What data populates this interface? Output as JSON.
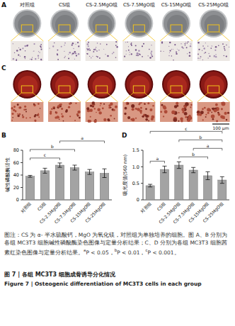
{
  "photo_columns": [
    "对照组",
    "CS组",
    "CS-2.5MgO组",
    "CS-7.5MgO组",
    "CS-15MgO组",
    "CS-25MgO组"
  ],
  "photo_panels": [
    {
      "letter": "A"
    },
    {
      "letter": "C"
    }
  ],
  "scale_bar": "100 μm",
  "chart_data": [
    {
      "type": "bar",
      "panel": "B",
      "y_label": "碱性磷酸酶活性",
      "categories": [
        "对照组",
        "CS组",
        "CS-2.5MgO组",
        "CS-7.5MgO组",
        "CS-15MgO组",
        "CS-25MgO组"
      ],
      "values": [
        38,
        47,
        56,
        52,
        45,
        43
      ],
      "errors": [
        1.5,
        4,
        3.5,
        4,
        4,
        7
      ],
      "color": "#a3a3a3",
      "ylim": [
        0,
        80
      ],
      "yticks": [
        0,
        20,
        40,
        60,
        80
      ],
      "annotations": [
        {
          "from": 0,
          "to": 2,
          "label": "c"
        },
        {
          "from": 0,
          "to": 3,
          "label": "b"
        },
        {
          "from": 2,
          "to": 5,
          "label": "a"
        }
      ]
    },
    {
      "type": "bar",
      "panel": "D",
      "y_label": "吸光度值(560 nm)",
      "categories": [
        "对照组",
        "CS组",
        "CS-2.5MgO组",
        "CS-7.5MgO组",
        "CS-15MgO组",
        "CS-25MgO组"
      ],
      "values": [
        0.43,
        0.92,
        1.05,
        0.9,
        0.73,
        0.6
      ],
      "errors": [
        0.04,
        0.1,
        0.1,
        0.08,
        0.12,
        0.1
      ],
      "color": "#a3a3a3",
      "ylim": [
        0,
        1.5
      ],
      "yticks": [
        0,
        0.5,
        {
          "value": 1,
          "label": "1.0"
        },
        1.5
      ],
      "annotations": [
        {
          "from": 0,
          "to": 1,
          "label": "a"
        },
        {
          "from": 2,
          "to": 4,
          "label": "b"
        },
        {
          "from": 3,
          "to": 5,
          "label": "a"
        },
        {
          "from": 2,
          "to": 5,
          "label": "b"
        },
        {
          "from": 0,
          "to": 5,
          "label": "c"
        }
      ]
    }
  ],
  "caption": {
    "text": "图注：CS 为 α- 半水硫酸钙，MgO 为氧化镁，对照组为单独培养的细胞。图 A、B 分别为各组 MC3T3 细胞碱性磷酸酶染色图像与定量分析结果；C、D 分别为各组 MC3T3 细胞茜素红染色图像与定量分析结果。",
    "notes": [
      {
        "mark": "a",
        "text": "P < 0.05，"
      },
      {
        "mark": "b",
        "text": "P < 0.01，"
      },
      {
        "mark": "c",
        "text": "P < 0.001。"
      }
    ]
  },
  "figure_title_zh": "图 7 | 各组 MC3T3 细胞成骨诱导分化情况",
  "figure_title_en": "Figure 7 | Osteogenic differentiation of MC3T3 cells in each group"
}
